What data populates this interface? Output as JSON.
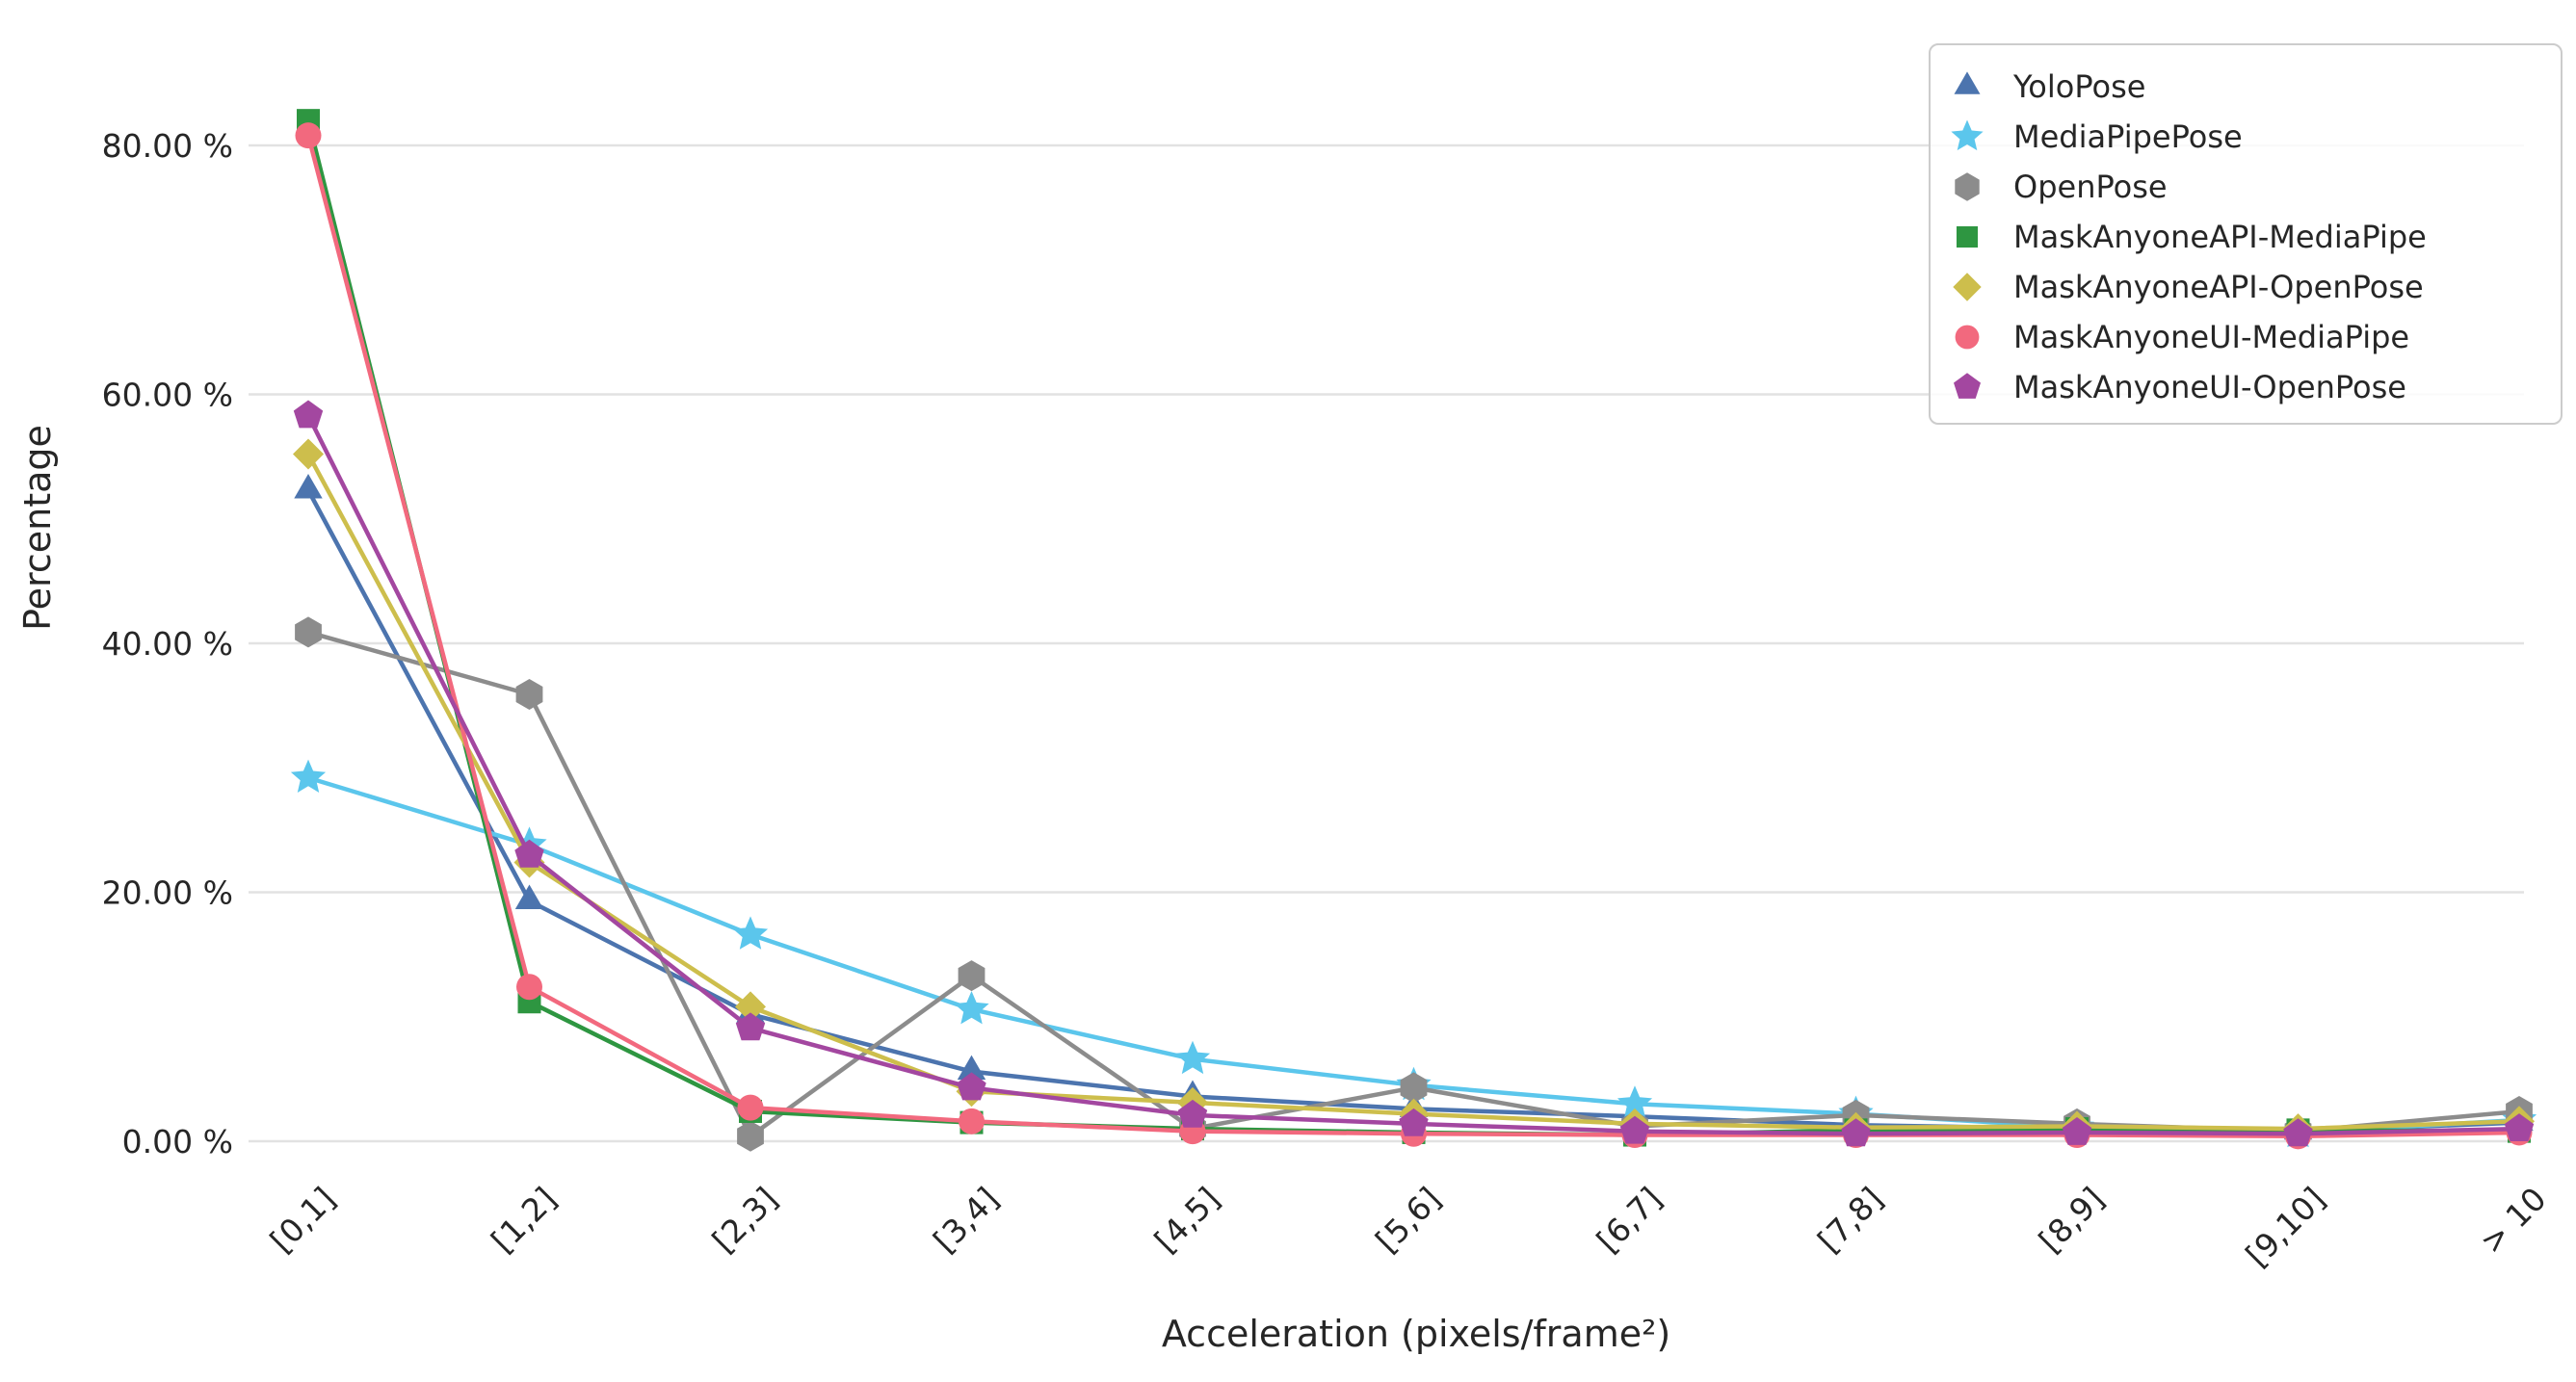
{
  "chart_data": {
    "type": "line",
    "title": "",
    "xlabel": "Acceleration (pixels/frame²)",
    "ylabel": "Percentage",
    "categories": [
      "[0,1]",
      "[1,2]",
      "[2,3]",
      "[3,4]",
      "[4,5]",
      "[5,6]",
      "[6,7]",
      "[7,8]",
      "[8,9]",
      "[9,10]",
      "> 10"
    ],
    "yticks": [
      0,
      20,
      40,
      60,
      80
    ],
    "ytick_labels": [
      "0.00 %",
      "20.00 %",
      "40.00 %",
      "60.00 %",
      "80.00 %"
    ],
    "ylim": [
      0,
      88
    ],
    "grid": "horizontal-only",
    "grid_color": "#e2e2e2",
    "background_color": "#ffffff",
    "legend_position": "top-right",
    "legend_border_color": "#cccccc",
    "series": [
      {
        "name": "YoloPose",
        "marker": "triangle",
        "color": "#4C74AE",
        "values": [
          52.3,
          19.3,
          10.2,
          5.6,
          3.6,
          2.6,
          2.0,
          1.3,
          1.0,
          0.8,
          1.5
        ]
      },
      {
        "name": "MediaPipePose",
        "marker": "star",
        "color": "#5BC6EC",
        "values": [
          29.2,
          23.8,
          16.6,
          10.6,
          6.6,
          4.5,
          3.0,
          2.2,
          1.1,
          0.7,
          1.7
        ]
      },
      {
        "name": "OpenPose",
        "marker": "hexagon",
        "color": "#8C8C8C",
        "values": [
          40.9,
          35.9,
          0.4,
          13.3,
          1.0,
          4.3,
          1.2,
          2.1,
          1.4,
          0.8,
          2.4
        ]
      },
      {
        "name": "MaskAnyoneAPI-MediaPipe",
        "marker": "square",
        "color": "#2E9641",
        "values": [
          82.0,
          11.2,
          2.4,
          1.5,
          1.0,
          0.7,
          0.5,
          0.9,
          1.0,
          0.9,
          0.8
        ]
      },
      {
        "name": "MaskAnyoneAPI-OpenPose",
        "marker": "diamond",
        "color": "#CDBE4C",
        "values": [
          55.2,
          22.4,
          10.8,
          4.0,
          3.1,
          2.2,
          1.4,
          1.1,
          1.2,
          1.0,
          1.6
        ]
      },
      {
        "name": "MaskAnyoneUI-MediaPipe",
        "marker": "circle",
        "color": "#F2697E",
        "values": [
          80.8,
          12.4,
          2.7,
          1.6,
          0.8,
          0.6,
          0.5,
          0.5,
          0.5,
          0.4,
          0.7
        ]
      },
      {
        "name": "MaskAnyoneUI-OpenPose",
        "marker": "pentagon",
        "color": "#A347A0",
        "values": [
          58.3,
          23.0,
          9.1,
          4.3,
          2.1,
          1.4,
          0.8,
          0.6,
          0.7,
          0.6,
          1.0
        ]
      }
    ]
  }
}
